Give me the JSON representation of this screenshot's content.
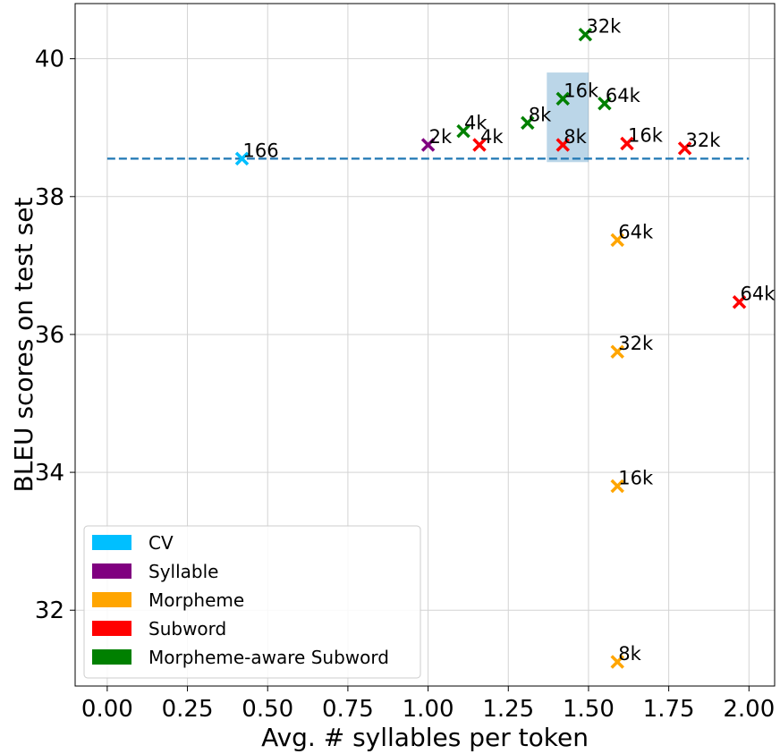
{
  "chart_data": {
    "type": "scatter",
    "xlabel": "Avg. # syllables per token",
    "ylabel": "BLEU scores on test set",
    "xlim": [
      -0.1,
      2.08
    ],
    "ylim": [
      30.9,
      40.8
    ],
    "xticks": [
      0.0,
      0.25,
      0.5,
      0.75,
      1.0,
      1.25,
      1.5,
      1.75,
      2.0
    ],
    "xtick_labels": [
      "0.00",
      "0.25",
      "0.50",
      "0.75",
      "1.00",
      "1.25",
      "1.50",
      "1.75",
      "2.00"
    ],
    "yticks": [
      32,
      34,
      36,
      38,
      40
    ],
    "ytick_labels": [
      "32",
      "34",
      "36",
      "38",
      "40"
    ],
    "grid": true,
    "legend_position": "bottom-left",
    "baseline": {
      "y": 38.55,
      "x_range": [
        0.0,
        2.0
      ],
      "color": "#1f77b4",
      "style": "dashed"
    },
    "highlight_region": {
      "x_range": [
        1.37,
        1.5
      ],
      "y_range": [
        38.5,
        39.8
      ],
      "color": "#1f77b4"
    },
    "series": [
      {
        "name": "CV",
        "color": "#00bfff",
        "points": [
          {
            "x": 0.42,
            "y": 38.55,
            "label": "166"
          }
        ]
      },
      {
        "name": "Syllable",
        "color": "#800080",
        "points": [
          {
            "x": 1.0,
            "y": 38.75,
            "label": "2k"
          }
        ]
      },
      {
        "name": "Morpheme",
        "color": "#ffa500",
        "points": [
          {
            "x": 1.59,
            "y": 31.25,
            "label": "8k"
          },
          {
            "x": 1.59,
            "y": 33.8,
            "label": "16k"
          },
          {
            "x": 1.59,
            "y": 35.75,
            "label": "32k"
          },
          {
            "x": 1.59,
            "y": 37.37,
            "label": "64k"
          }
        ]
      },
      {
        "name": "Subword",
        "color": "#ff0000",
        "points": [
          {
            "x": 1.16,
            "y": 38.75,
            "label": "4k"
          },
          {
            "x": 1.42,
            "y": 38.75,
            "label": "8k"
          },
          {
            "x": 1.62,
            "y": 38.77,
            "label": "16k"
          },
          {
            "x": 1.8,
            "y": 38.7,
            "label": "32k"
          },
          {
            "x": 1.97,
            "y": 36.47,
            "label": "64k"
          }
        ]
      },
      {
        "name": "Morpheme-aware Subword",
        "color": "#008000",
        "points": [
          {
            "x": 1.11,
            "y": 38.95,
            "label": "4k"
          },
          {
            "x": 1.31,
            "y": 39.07,
            "label": "8k"
          },
          {
            "x": 1.42,
            "y": 39.42,
            "label": "16k"
          },
          {
            "x": 1.49,
            "y": 40.35,
            "label": "32k"
          },
          {
            "x": 1.55,
            "y": 39.35,
            "label": "64k"
          }
        ]
      }
    ]
  }
}
